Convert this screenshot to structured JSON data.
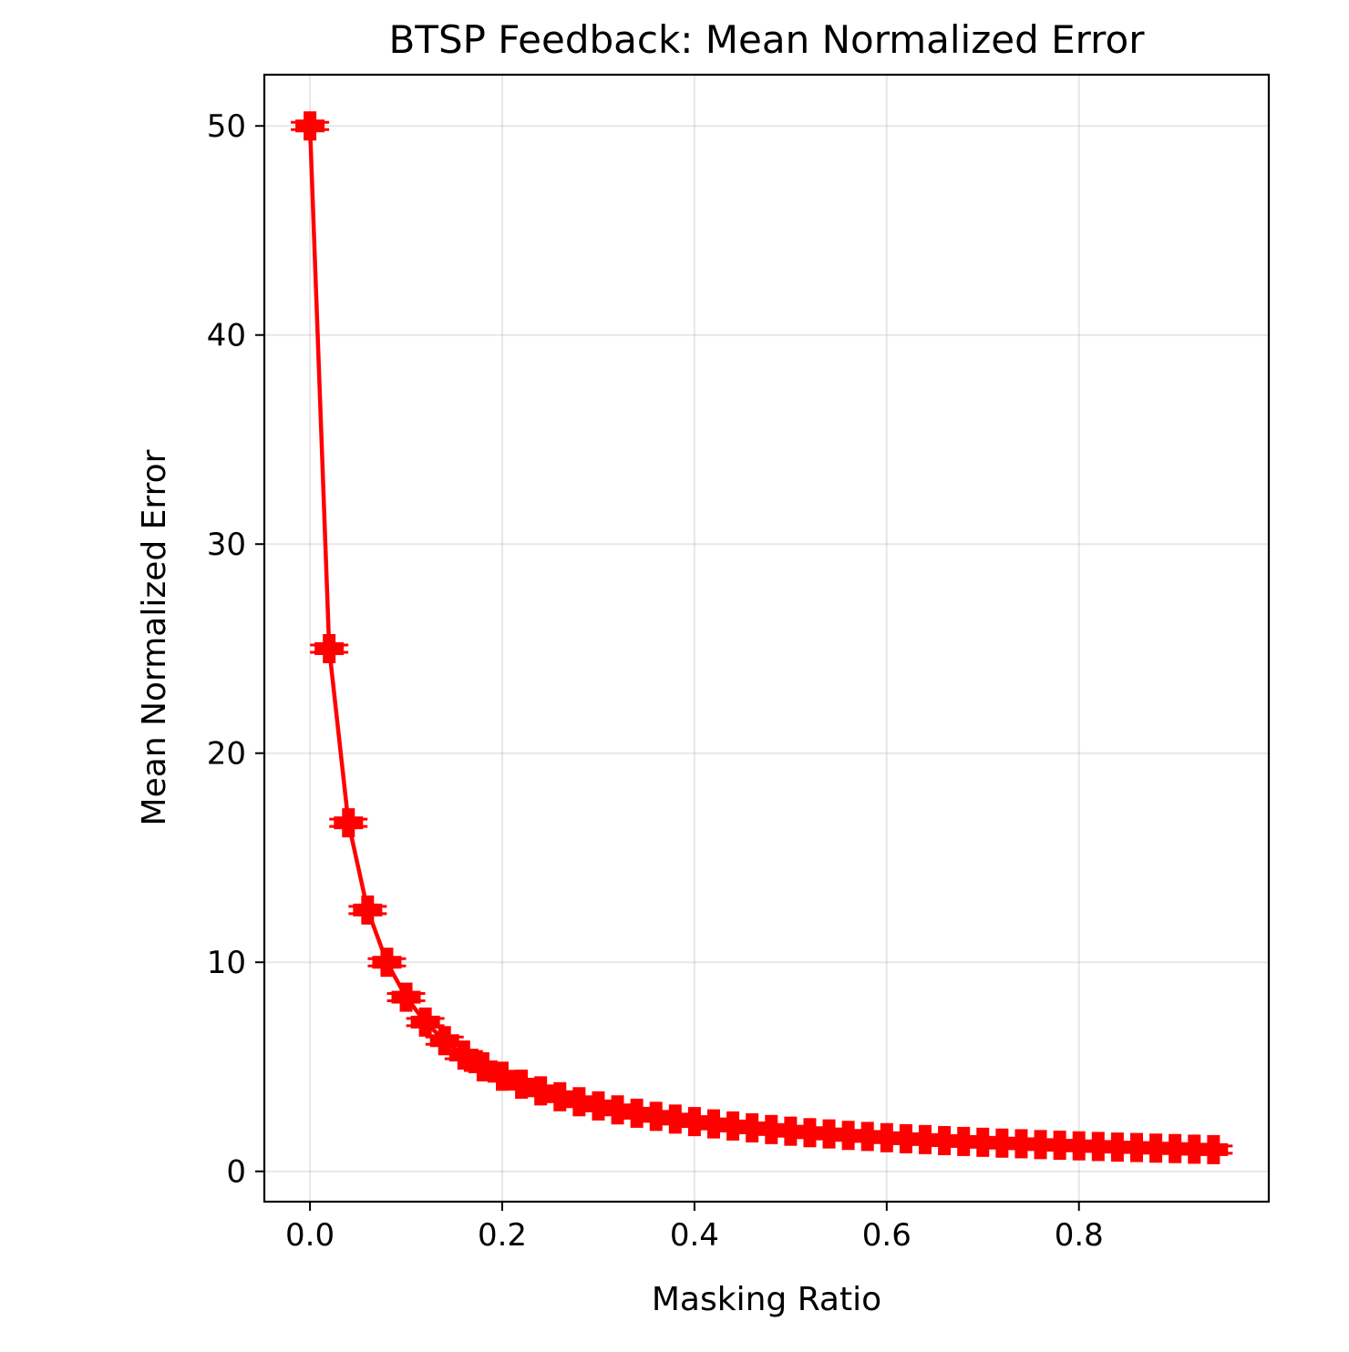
{
  "chart_data": {
    "type": "line",
    "title": "BTSP Feedback: Mean Normalized Error",
    "xlabel": "Masking Ratio",
    "ylabel": "Mean Normalized Error",
    "xlim": [
      -0.0475,
      0.9975
    ],
    "ylim": [
      -1.45,
      52.45
    ],
    "xticks": [
      0.0,
      0.2,
      0.4,
      0.6,
      0.8
    ],
    "xtick_labels": [
      "0.0",
      "0.2",
      "0.4",
      "0.6",
      "0.8"
    ],
    "yticks": [
      0,
      10,
      20,
      30,
      40,
      50
    ],
    "ytick_labels": [
      "0",
      "10",
      "20",
      "30",
      "40",
      "50"
    ],
    "grid": true,
    "legend": "none",
    "series": [
      {
        "color": "#ff0000",
        "marker": "plus-filled",
        "error_bars": true,
        "x": [
          0.0,
          0.02,
          0.04,
          0.06,
          0.08,
          0.1,
          0.12,
          0.14,
          0.16,
          0.18,
          0.2,
          0.22,
          0.24,
          0.26,
          0.28,
          0.3,
          0.32,
          0.34,
          0.36,
          0.38,
          0.4,
          0.42,
          0.44,
          0.46,
          0.48,
          0.5,
          0.52,
          0.54,
          0.56,
          0.58,
          0.6,
          0.62,
          0.64,
          0.66,
          0.68,
          0.7,
          0.72,
          0.74,
          0.76,
          0.78,
          0.8,
          0.82,
          0.84,
          0.86,
          0.88,
          0.9,
          0.92,
          0.94
        ],
        "y": [
          50.0,
          25.0,
          16.67,
          12.5,
          10.0,
          8.33,
          7.14,
          6.25,
          5.56,
          5.0,
          4.55,
          4.17,
          3.85,
          3.57,
          3.33,
          3.13,
          2.94,
          2.78,
          2.63,
          2.5,
          2.38,
          2.27,
          2.17,
          2.08,
          2.0,
          1.92,
          1.85,
          1.79,
          1.72,
          1.67,
          1.61,
          1.56,
          1.52,
          1.47,
          1.43,
          1.39,
          1.35,
          1.32,
          1.28,
          1.25,
          1.22,
          1.19,
          1.16,
          1.14,
          1.11,
          1.09,
          1.06,
          1.04
        ]
      }
    ]
  }
}
